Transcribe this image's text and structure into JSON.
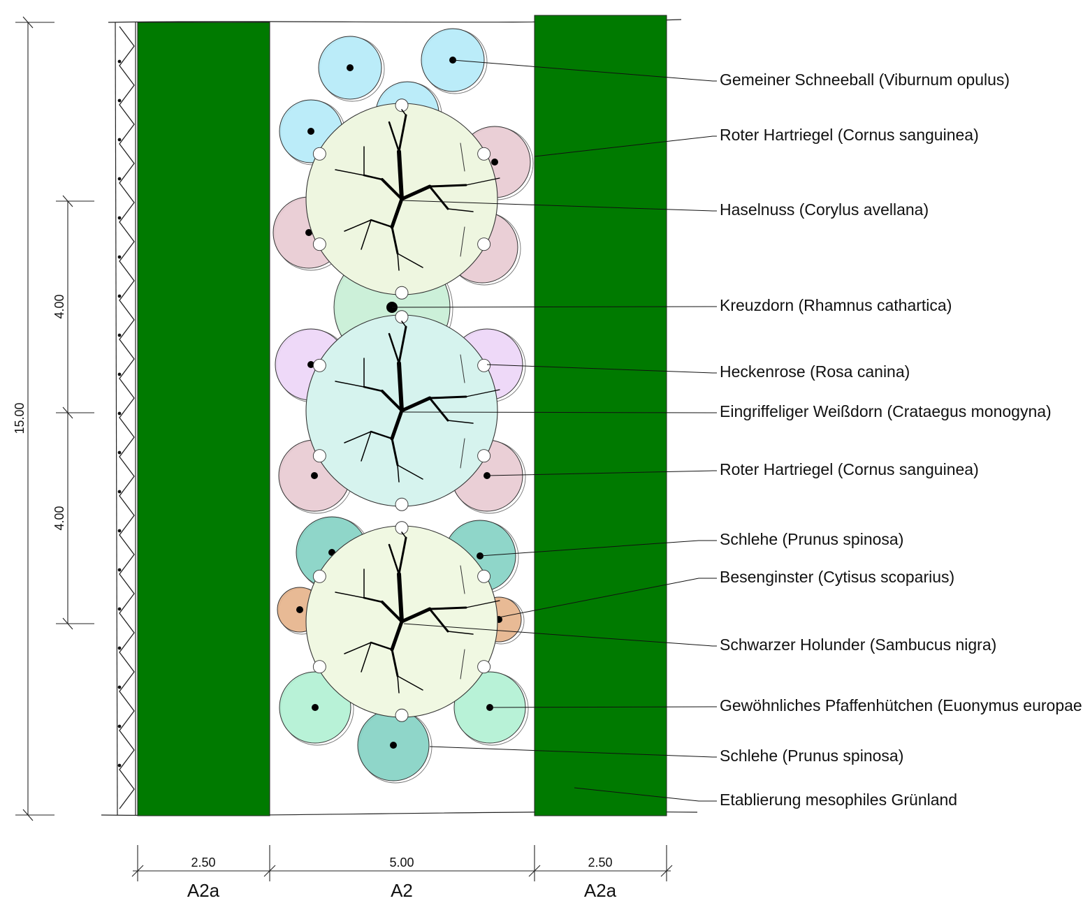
{
  "dimensions": {
    "total_length": "15.00",
    "segment_upper": "4.00",
    "segment_lower": "4.00",
    "widths": [
      "2.50",
      "5.00",
      "2.50"
    ]
  },
  "zones": [
    "A2a",
    "A2",
    "A2a"
  ],
  "labels": [
    "Gemeiner Schneeball (Viburnum opulus)",
    "Roter Hartriegel (Cornus sanguinea)",
    "Haselnuss (Corylus avellana)",
    "Kreuzdorn (Rhamnus cathartica)",
    "Heckenrose (Rosa canina)",
    "Eingriffeliger Weißdorn (Crataegus monogyna)",
    "Roter Hartriegel (Cornus sanguinea)",
    "Schlehe (Prunus spinosa)",
    "Besenginster (Cytisus scoparius)",
    "Schwarzer Holunder (Sambucus nigra)",
    "Gewöhnliches Pfaffenhütchen (Euonymus europaeus)",
    "Schlehe (Prunus spinosa)",
    "Etablierung mesophiles Grünland"
  ],
  "colors": {
    "grassland_strip": "#007a00",
    "viburnum": "#b5eaf8",
    "cornus": "#e8cbd3",
    "corylus_crown": "#eef6e0",
    "rhamnus": "#c8efd6",
    "rosa": "#edd6f7",
    "crataegus_crown": "#d6f3ee",
    "prunus": "#86d3c4",
    "cytisus": "#e6b48c",
    "sambucus_crown": "#f0f8e2",
    "euonymus": "#b2f1d4"
  }
}
